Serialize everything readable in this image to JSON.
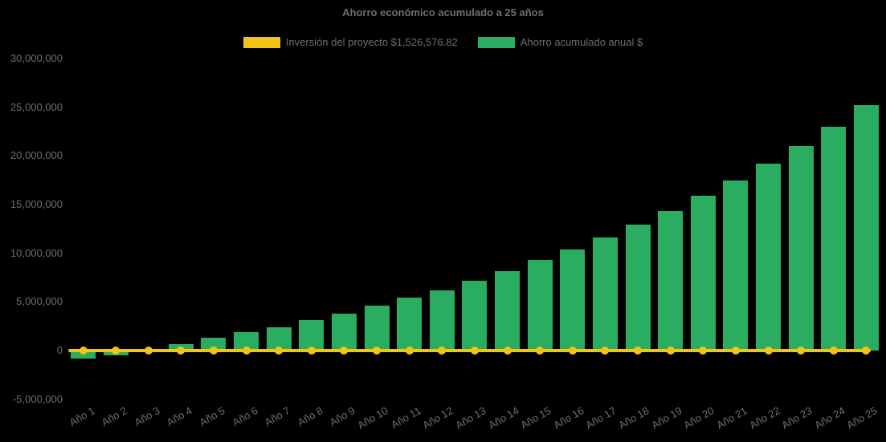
{
  "title": "Ahorro económico acumulado a 25 años",
  "background_color": "#000000",
  "text_color": "#6E6E6E",
  "legend": {
    "position": "top-center",
    "items": [
      {
        "id": "investment",
        "label": "Inversión del proyecto $1,526,576.82",
        "color": "#F0C419",
        "swatch": "rect-swatch"
      },
      {
        "id": "savings",
        "label": "Ahorro acumulado anual $",
        "color": "#2BAD61",
        "swatch": "rect-swatch"
      }
    ]
  },
  "chart_data": {
    "type": "bar",
    "title": "Ahorro económico acumulado a 25 años",
    "categories": [
      "Año 1",
      "Año 2",
      "Año 3",
      "Año 4",
      "Año 5",
      "Año 6",
      "Año 7",
      "Año 8",
      "Año 9",
      "Año 10",
      "Año 11",
      "Año 12",
      "Año 13",
      "Año 14",
      "Año 15",
      "Año 16",
      "Año 17",
      "Año 18",
      "Año 19",
      "Año 20",
      "Año 21",
      "Año 22",
      "Año 23",
      "Año 24",
      "Año 25"
    ],
    "series": [
      {
        "name": "Ahorro acumulado anual $",
        "type": "bar",
        "color": "#2BAD61",
        "values": [
          -800000,
          -500000,
          200000,
          700000,
          1300000,
          1900000,
          2400000,
          3100000,
          3800000,
          4600000,
          5400000,
          6200000,
          7200000,
          8200000,
          9300000,
          10400000,
          11600000,
          12900000,
          14300000,
          15900000,
          17500000,
          19200000,
          21000000,
          23000000,
          25200000
        ]
      },
      {
        "name": "Inversión del proyecto $1,526,576.82",
        "type": "line",
        "color": "#F0C419",
        "marker": "circle",
        "legend_value": 1526576.82,
        "value_as_drawn_constant": 0,
        "note": "flat yellow line with a round marker at every year, drawn along the zero baseline"
      }
    ],
    "y_axis": {
      "min": -5000000,
      "max": 30000000,
      "tick_interval": 5000000,
      "ticks": [
        {
          "value": 30000000,
          "label": "30,000,000"
        },
        {
          "value": 25000000,
          "label": "25,000,000"
        },
        {
          "value": 20000000,
          "label": "20,000,000"
        },
        {
          "value": 15000000,
          "label": "15,000,000"
        },
        {
          "value": 10000000,
          "label": "10,000,000"
        },
        {
          "value": 5000000,
          "label": "5,000,000"
        },
        {
          "value": 0,
          "label": "0"
        },
        {
          "value": -5000000,
          "label": "-5,000,000"
        }
      ]
    },
    "x_axis": {
      "label_rotation_deg": -30
    },
    "grid": false,
    "legend_position": "top-center"
  }
}
